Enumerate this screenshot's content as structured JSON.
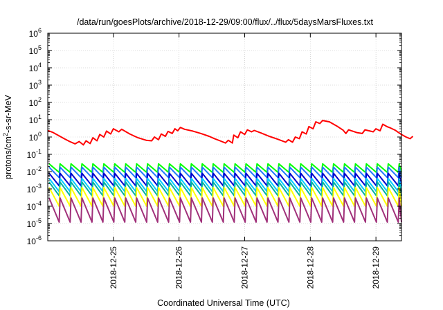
{
  "chart_data": {
    "type": "line",
    "title": "/data/run/goesPlots/archive/2018-12-29/09:00/flux/../flux/5daysMarsFluxes.txt",
    "xlabel": "Coordinated Universal Time (UTC)",
    "ylabel": {
      "base": "protons/cm",
      "sup": "2",
      "rest": "-s-sr-MeV"
    },
    "x_range": [
      "2018-12-24T00:00",
      "2018-12-29T09:20"
    ],
    "ylim": [
      1e-06,
      1000000.0
    ],
    "yscale": "log",
    "grid": true,
    "legend": "none",
    "x_ticks": [
      "2018-12-25",
      "2018-12-26",
      "2018-12-27",
      "2018-12-28",
      "2018-12-29"
    ],
    "y_ticks": [
      {
        "value": 1e-06,
        "base": "10",
        "exp": "-6"
      },
      {
        "value": 1e-05,
        "base": "10",
        "exp": "-5"
      },
      {
        "value": 0.0001,
        "base": "10",
        "exp": "-4"
      },
      {
        "value": 0.001,
        "base": "10",
        "exp": "-3"
      },
      {
        "value": 0.01,
        "base": "10",
        "exp": "-2"
      },
      {
        "value": 0.1,
        "base": "10",
        "exp": "-1"
      },
      {
        "value": 1,
        "base": "10",
        "exp": "0"
      },
      {
        "value": 10.0,
        "base": "10",
        "exp": "1"
      },
      {
        "value": 100.0,
        "base": "10",
        "exp": "2"
      },
      {
        "value": 1000.0,
        "base": "10",
        "exp": "3"
      },
      {
        "value": 10000.0,
        "base": "10",
        "exp": "4"
      },
      {
        "value": 100000.0,
        "base": "10",
        "exp": "5"
      },
      {
        "value": 1000000.0,
        "base": "10",
        "exp": "6"
      }
    ],
    "series": [
      {
        "color": "#ff0000",
        "points": [
          [
            "2018-12-24T00:00",
            2.4
          ],
          [
            "2018-12-24T02:00",
            1.8
          ],
          [
            "2018-12-24T04:00",
            1.2
          ],
          [
            "2018-12-24T06:00",
            0.8
          ],
          [
            "2018-12-24T08:00",
            0.55
          ],
          [
            "2018-12-24T10:00",
            0.4
          ],
          [
            "2018-12-24T11:30",
            0.55
          ],
          [
            "2018-12-24T13:00",
            0.35
          ],
          [
            "2018-12-24T14:00",
            0.6
          ],
          [
            "2018-12-24T15:30",
            0.42
          ],
          [
            "2018-12-24T16:30",
            0.9
          ],
          [
            "2018-12-24T18:00",
            0.6
          ],
          [
            "2018-12-24T19:00",
            1.4
          ],
          [
            "2018-12-24T20:30",
            1.0
          ],
          [
            "2018-12-24T21:30",
            2.2
          ],
          [
            "2018-12-24T23:00",
            1.5
          ],
          [
            "2018-12-25T00:00",
            3.0
          ],
          [
            "2018-12-25T02:00",
            2.0
          ],
          [
            "2018-12-25T03:00",
            2.8
          ],
          [
            "2018-12-25T06:00",
            1.5
          ],
          [
            "2018-12-25T09:00",
            0.9
          ],
          [
            "2018-12-25T12:00",
            0.65
          ],
          [
            "2018-12-25T14:00",
            0.6
          ],
          [
            "2018-12-25T15:00",
            1.0
          ],
          [
            "2018-12-25T16:30",
            0.7
          ],
          [
            "2018-12-25T17:30",
            1.5
          ],
          [
            "2018-12-25T19:00",
            1.1
          ],
          [
            "2018-12-25T20:00",
            2.1
          ],
          [
            "2018-12-25T21:30",
            1.6
          ],
          [
            "2018-12-25T22:30",
            3.0
          ],
          [
            "2018-12-25T23:30",
            2.3
          ],
          [
            "2018-12-26T00:30",
            3.6
          ],
          [
            "2018-12-26T02:00",
            2.8
          ],
          [
            "2018-12-26T05:00",
            2.2
          ],
          [
            "2018-12-26T08:00",
            1.6
          ],
          [
            "2018-12-26T11:00",
            1.1
          ],
          [
            "2018-12-26T13:00",
            0.8
          ],
          [
            "2018-12-26T15:00",
            0.6
          ],
          [
            "2018-12-26T17:00",
            0.45
          ],
          [
            "2018-12-26T18:00",
            0.65
          ],
          [
            "2018-12-26T19:30",
            0.45
          ],
          [
            "2018-12-26T20:00",
            1.3
          ],
          [
            "2018-12-26T21:30",
            0.9
          ],
          [
            "2018-12-26T22:30",
            2.0
          ],
          [
            "2018-12-27T00:00",
            1.4
          ],
          [
            "2018-12-27T01:00",
            2.6
          ],
          [
            "2018-12-27T02:30",
            2.0
          ],
          [
            "2018-12-27T03:30",
            2.4
          ],
          [
            "2018-12-27T06:00",
            1.7
          ],
          [
            "2018-12-27T09:00",
            1.1
          ],
          [
            "2018-12-27T12:00",
            0.75
          ],
          [
            "2018-12-27T15:00",
            0.5
          ],
          [
            "2018-12-27T16:00",
            0.7
          ],
          [
            "2018-12-27T17:30",
            0.5
          ],
          [
            "2018-12-27T18:30",
            1.0
          ],
          [
            "2018-12-27T20:00",
            0.8
          ],
          [
            "2018-12-27T21:00",
            2.0
          ],
          [
            "2018-12-27T22:30",
            1.5
          ],
          [
            "2018-12-27T23:30",
            4.0
          ],
          [
            "2018-12-28T01:00",
            3.0
          ],
          [
            "2018-12-28T02:00",
            7.5
          ],
          [
            "2018-12-28T03:30",
            6.0
          ],
          [
            "2018-12-28T04:30",
            9.0
          ],
          [
            "2018-12-28T07:00",
            7.5
          ],
          [
            "2018-12-28T10:00",
            4.0
          ],
          [
            "2018-12-28T12:00",
            2.5
          ],
          [
            "2018-12-28T13:00",
            1.6
          ],
          [
            "2018-12-28T14:00",
            2.6
          ],
          [
            "2018-12-28T17:00",
            1.8
          ],
          [
            "2018-12-28T19:00",
            1.6
          ],
          [
            "2018-12-28T20:00",
            2.6
          ],
          [
            "2018-12-28T23:00",
            2.0
          ],
          [
            "2018-12-29T00:00",
            3.0
          ],
          [
            "2018-12-29T01:30",
            2.3
          ],
          [
            "2018-12-29T02:30",
            5.5
          ],
          [
            "2018-12-29T04:00",
            4.0
          ],
          [
            "2018-12-29T05:00",
            3.5
          ],
          [
            "2018-12-29T07:00",
            2.5
          ],
          [
            "2018-12-29T09:00",
            1.5
          ],
          [
            "2018-12-29T11:00",
            1.0
          ],
          [
            "2018-12-29T12:30",
            0.8
          ],
          [
            "2018-12-29T13:30",
            1.1
          ]
        ]
      },
      {
        "color": "#00ff00",
        "sawtooth": {
          "high": 0.028,
          "low": 0.009,
          "period_hours": 4,
          "start": "2018-12-24T00:30",
          "end": "2018-12-29T09:20"
        }
      },
      {
        "color": "#1f77ff",
        "sawtooth": {
          "high": 0.018,
          "low": 0.0045,
          "period_hours": 4,
          "start": "2018-12-24T00:30",
          "end": "2018-12-29T09:20"
        }
      },
      {
        "color": "#0000cc",
        "sawtooth": {
          "high": 0.008,
          "low": 0.0015,
          "period_hours": 4,
          "start": "2018-12-24T00:30",
          "end": "2018-12-29T09:20"
        }
      },
      {
        "color": "#00ccff",
        "sawtooth": {
          "high": 0.004,
          "low": 0.0007,
          "period_hours": 4,
          "start": "2018-12-24T00:30",
          "end": "2018-12-29T09:20"
        }
      },
      {
        "color": "#00b3a0",
        "sawtooth": {
          "high": 0.0025,
          "low": 0.0004,
          "period_hours": 4,
          "start": "2018-12-24T00:30",
          "end": "2018-12-29T09:20"
        }
      },
      {
        "color": "#ffff00",
        "sawtooth": {
          "high": 0.0012,
          "low": 0.0001,
          "period_hours": 4,
          "start": "2018-12-24T00:30",
          "end": "2018-12-29T09:20"
        }
      },
      {
        "color": "#a0307a",
        "sawtooth": {
          "high": 0.0003,
          "low": 1.2e-05,
          "period_hours": 4,
          "start": "2018-12-24T00:30",
          "end": "2018-12-29T09:20"
        }
      }
    ]
  }
}
